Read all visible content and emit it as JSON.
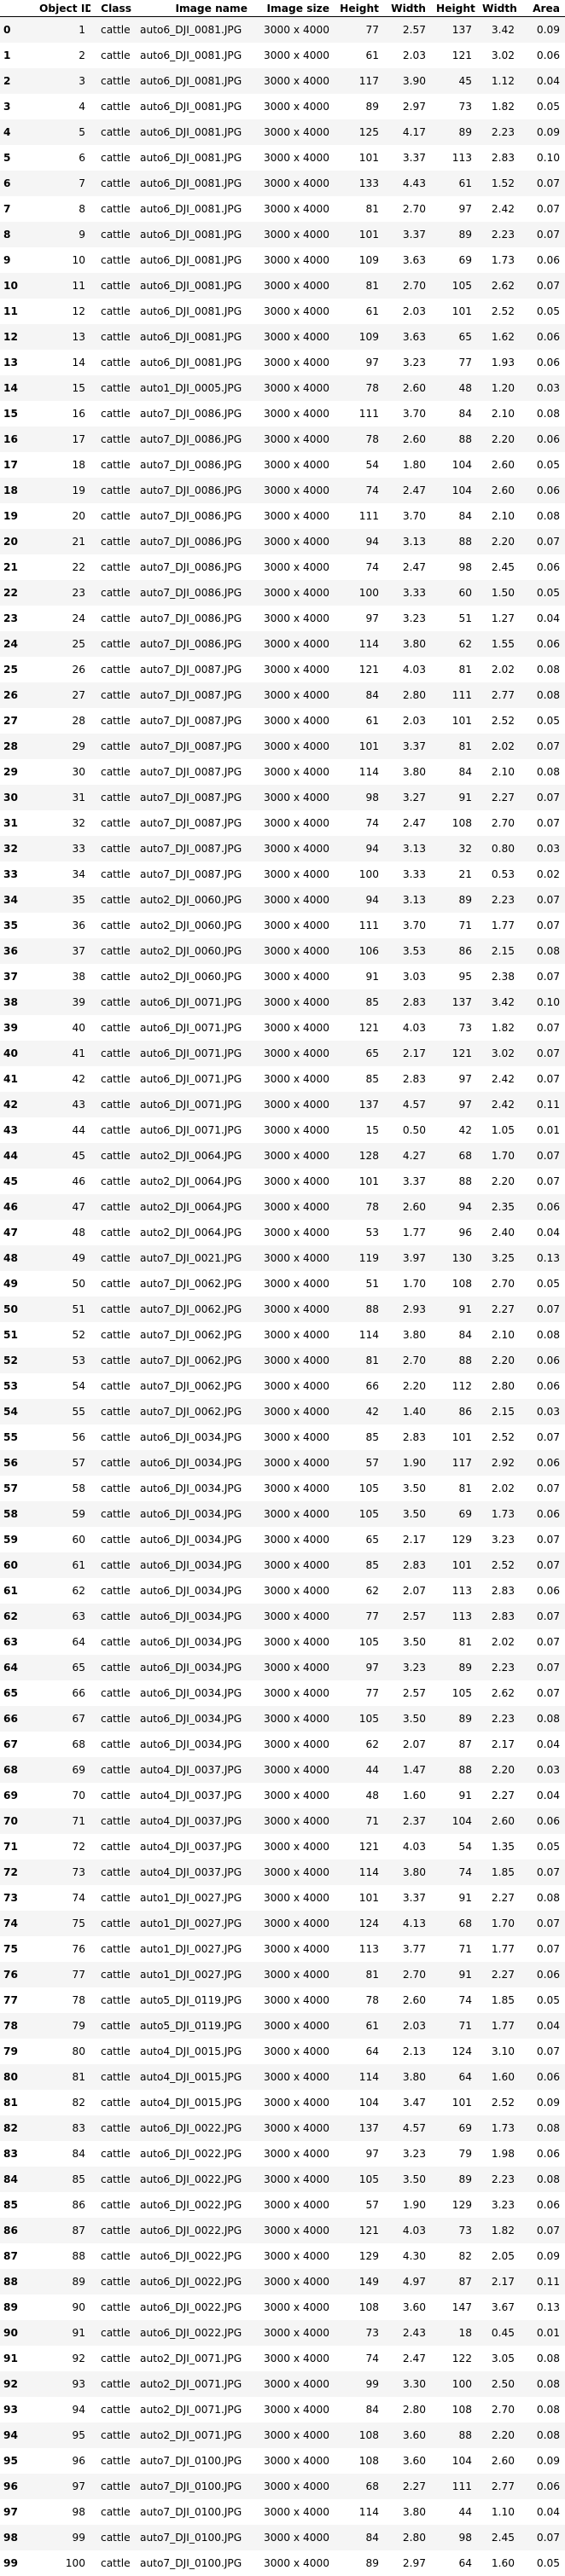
{
  "columns": [
    "",
    "Object ID",
    "Class",
    "Image name",
    "Image size",
    "Height",
    "Width",
    "Height",
    "Width",
    "Area"
  ],
  "rows": [
    [
      "0",
      "1",
      "cattle",
      "auto6_DJI_0081.JPG",
      "3000 x 4000",
      "77",
      "2.57",
      "137",
      "3.42",
      "0.09"
    ],
    [
      "1",
      "2",
      "cattle",
      "auto6_DJI_0081.JPG",
      "3000 x 4000",
      "61",
      "2.03",
      "121",
      "3.02",
      "0.06"
    ],
    [
      "2",
      "3",
      "cattle",
      "auto6_DJI_0081.JPG",
      "3000 x 4000",
      "117",
      "3.90",
      "45",
      "1.12",
      "0.04"
    ],
    [
      "3",
      "4",
      "cattle",
      "auto6_DJI_0081.JPG",
      "3000 x 4000",
      "89",
      "2.97",
      "73",
      "1.82",
      "0.05"
    ],
    [
      "4",
      "5",
      "cattle",
      "auto6_DJI_0081.JPG",
      "3000 x 4000",
      "125",
      "4.17",
      "89",
      "2.23",
      "0.09"
    ],
    [
      "5",
      "6",
      "cattle",
      "auto6_DJI_0081.JPG",
      "3000 x 4000",
      "101",
      "3.37",
      "113",
      "2.83",
      "0.10"
    ],
    [
      "6",
      "7",
      "cattle",
      "auto6_DJI_0081.JPG",
      "3000 x 4000",
      "133",
      "4.43",
      "61",
      "1.52",
      "0.07"
    ],
    [
      "7",
      "8",
      "cattle",
      "auto6_DJI_0081.JPG",
      "3000 x 4000",
      "81",
      "2.70",
      "97",
      "2.42",
      "0.07"
    ],
    [
      "8",
      "9",
      "cattle",
      "auto6_DJI_0081.JPG",
      "3000 x 4000",
      "101",
      "3.37",
      "89",
      "2.23",
      "0.07"
    ],
    [
      "9",
      "10",
      "cattle",
      "auto6_DJI_0081.JPG",
      "3000 x 4000",
      "109",
      "3.63",
      "69",
      "1.73",
      "0.06"
    ],
    [
      "10",
      "11",
      "cattle",
      "auto6_DJI_0081.JPG",
      "3000 x 4000",
      "81",
      "2.70",
      "105",
      "2.62",
      "0.07"
    ],
    [
      "11",
      "12",
      "cattle",
      "auto6_DJI_0081.JPG",
      "3000 x 4000",
      "61",
      "2.03",
      "101",
      "2.52",
      "0.05"
    ],
    [
      "12",
      "13",
      "cattle",
      "auto6_DJI_0081.JPG",
      "3000 x 4000",
      "109",
      "3.63",
      "65",
      "1.62",
      "0.06"
    ],
    [
      "13",
      "14",
      "cattle",
      "auto6_DJI_0081.JPG",
      "3000 x 4000",
      "97",
      "3.23",
      "77",
      "1.93",
      "0.06"
    ],
    [
      "14",
      "15",
      "cattle",
      "auto1_DJI_0005.JPG",
      "3000 x 4000",
      "78",
      "2.60",
      "48",
      "1.20",
      "0.03"
    ],
    [
      "15",
      "16",
      "cattle",
      "auto7_DJI_0086.JPG",
      "3000 x 4000",
      "111",
      "3.70",
      "84",
      "2.10",
      "0.08"
    ],
    [
      "16",
      "17",
      "cattle",
      "auto7_DJI_0086.JPG",
      "3000 x 4000",
      "78",
      "2.60",
      "88",
      "2.20",
      "0.06"
    ],
    [
      "17",
      "18",
      "cattle",
      "auto7_DJI_0086.JPG",
      "3000 x 4000",
      "54",
      "1.80",
      "104",
      "2.60",
      "0.05"
    ],
    [
      "18",
      "19",
      "cattle",
      "auto7_DJI_0086.JPG",
      "3000 x 4000",
      "74",
      "2.47",
      "104",
      "2.60",
      "0.06"
    ],
    [
      "19",
      "20",
      "cattle",
      "auto7_DJI_0086.JPG",
      "3000 x 4000",
      "111",
      "3.70",
      "84",
      "2.10",
      "0.08"
    ],
    [
      "20",
      "21",
      "cattle",
      "auto7_DJI_0086.JPG",
      "3000 x 4000",
      "94",
      "3.13",
      "88",
      "2.20",
      "0.07"
    ],
    [
      "21",
      "22",
      "cattle",
      "auto7_DJI_0086.JPG",
      "3000 x 4000",
      "74",
      "2.47",
      "98",
      "2.45",
      "0.06"
    ],
    [
      "22",
      "23",
      "cattle",
      "auto7_DJI_0086.JPG",
      "3000 x 4000",
      "100",
      "3.33",
      "60",
      "1.50",
      "0.05"
    ],
    [
      "23",
      "24",
      "cattle",
      "auto7_DJI_0086.JPG",
      "3000 x 4000",
      "97",
      "3.23",
      "51",
      "1.27",
      "0.04"
    ],
    [
      "24",
      "25",
      "cattle",
      "auto7_DJI_0086.JPG",
      "3000 x 4000",
      "114",
      "3.80",
      "62",
      "1.55",
      "0.06"
    ],
    [
      "25",
      "26",
      "cattle",
      "auto7_DJI_0087.JPG",
      "3000 x 4000",
      "121",
      "4.03",
      "81",
      "2.02",
      "0.08"
    ],
    [
      "26",
      "27",
      "cattle",
      "auto7_DJI_0087.JPG",
      "3000 x 4000",
      "84",
      "2.80",
      "111",
      "2.77",
      "0.08"
    ],
    [
      "27",
      "28",
      "cattle",
      "auto7_DJI_0087.JPG",
      "3000 x 4000",
      "61",
      "2.03",
      "101",
      "2.52",
      "0.05"
    ],
    [
      "28",
      "29",
      "cattle",
      "auto7_DJI_0087.JPG",
      "3000 x 4000",
      "101",
      "3.37",
      "81",
      "2.02",
      "0.07"
    ],
    [
      "29",
      "30",
      "cattle",
      "auto7_DJI_0087.JPG",
      "3000 x 4000",
      "114",
      "3.80",
      "84",
      "2.10",
      "0.08"
    ],
    [
      "30",
      "31",
      "cattle",
      "auto7_DJI_0087.JPG",
      "3000 x 4000",
      "98",
      "3.27",
      "91",
      "2.27",
      "0.07"
    ],
    [
      "31",
      "32",
      "cattle",
      "auto7_DJI_0087.JPG",
      "3000 x 4000",
      "74",
      "2.47",
      "108",
      "2.70",
      "0.07"
    ],
    [
      "32",
      "33",
      "cattle",
      "auto7_DJI_0087.JPG",
      "3000 x 4000",
      "94",
      "3.13",
      "32",
      "0.80",
      "0.03"
    ],
    [
      "33",
      "34",
      "cattle",
      "auto7_DJI_0087.JPG",
      "3000 x 4000",
      "100",
      "3.33",
      "21",
      "0.53",
      "0.02"
    ],
    [
      "34",
      "35",
      "cattle",
      "auto2_DJI_0060.JPG",
      "3000 x 4000",
      "94",
      "3.13",
      "89",
      "2.23",
      "0.07"
    ],
    [
      "35",
      "36",
      "cattle",
      "auto2_DJI_0060.JPG",
      "3000 x 4000",
      "111",
      "3.70",
      "71",
      "1.77",
      "0.07"
    ],
    [
      "36",
      "37",
      "cattle",
      "auto2_DJI_0060.JPG",
      "3000 x 4000",
      "106",
      "3.53",
      "86",
      "2.15",
      "0.08"
    ],
    [
      "37",
      "38",
      "cattle",
      "auto2_DJI_0060.JPG",
      "3000 x 4000",
      "91",
      "3.03",
      "95",
      "2.38",
      "0.07"
    ],
    [
      "38",
      "39",
      "cattle",
      "auto6_DJI_0071.JPG",
      "3000 x 4000",
      "85",
      "2.83",
      "137",
      "3.42",
      "0.10"
    ],
    [
      "39",
      "40",
      "cattle",
      "auto6_DJI_0071.JPG",
      "3000 x 4000",
      "121",
      "4.03",
      "73",
      "1.82",
      "0.07"
    ],
    [
      "40",
      "41",
      "cattle",
      "auto6_DJI_0071.JPG",
      "3000 x 4000",
      "65",
      "2.17",
      "121",
      "3.02",
      "0.07"
    ],
    [
      "41",
      "42",
      "cattle",
      "auto6_DJI_0071.JPG",
      "3000 x 4000",
      "85",
      "2.83",
      "97",
      "2.42",
      "0.07"
    ],
    [
      "42",
      "43",
      "cattle",
      "auto6_DJI_0071.JPG",
      "3000 x 4000",
      "137",
      "4.57",
      "97",
      "2.42",
      "0.11"
    ],
    [
      "43",
      "44",
      "cattle",
      "auto6_DJI_0071.JPG",
      "3000 x 4000",
      "15",
      "0.50",
      "42",
      "1.05",
      "0.01"
    ],
    [
      "44",
      "45",
      "cattle",
      "auto2_DJI_0064.JPG",
      "3000 x 4000",
      "128",
      "4.27",
      "68",
      "1.70",
      "0.07"
    ],
    [
      "45",
      "46",
      "cattle",
      "auto2_DJI_0064.JPG",
      "3000 x 4000",
      "101",
      "3.37",
      "88",
      "2.20",
      "0.07"
    ],
    [
      "46",
      "47",
      "cattle",
      "auto2_DJI_0064.JPG",
      "3000 x 4000",
      "78",
      "2.60",
      "94",
      "2.35",
      "0.06"
    ],
    [
      "47",
      "48",
      "cattle",
      "auto2_DJI_0064.JPG",
      "3000 x 4000",
      "53",
      "1.77",
      "96",
      "2.40",
      "0.04"
    ],
    [
      "48",
      "49",
      "cattle",
      "auto7_DJI_0021.JPG",
      "3000 x 4000",
      "119",
      "3.97",
      "130",
      "3.25",
      "0.13"
    ],
    [
      "49",
      "50",
      "cattle",
      "auto7_DJI_0062.JPG",
      "3000 x 4000",
      "51",
      "1.70",
      "108",
      "2.70",
      "0.05"
    ],
    [
      "50",
      "51",
      "cattle",
      "auto7_DJI_0062.JPG",
      "3000 x 4000",
      "88",
      "2.93",
      "91",
      "2.27",
      "0.07"
    ],
    [
      "51",
      "52",
      "cattle",
      "auto7_DJI_0062.JPG",
      "3000 x 4000",
      "114",
      "3.80",
      "84",
      "2.10",
      "0.08"
    ],
    [
      "52",
      "53",
      "cattle",
      "auto7_DJI_0062.JPG",
      "3000 x 4000",
      "81",
      "2.70",
      "88",
      "2.20",
      "0.06"
    ],
    [
      "53",
      "54",
      "cattle",
      "auto7_DJI_0062.JPG",
      "3000 x 4000",
      "66",
      "2.20",
      "112",
      "2.80",
      "0.06"
    ],
    [
      "54",
      "55",
      "cattle",
      "auto7_DJI_0062.JPG",
      "3000 x 4000",
      "42",
      "1.40",
      "86",
      "2.15",
      "0.03"
    ],
    [
      "55",
      "56",
      "cattle",
      "auto6_DJI_0034.JPG",
      "3000 x 4000",
      "85",
      "2.83",
      "101",
      "2.52",
      "0.07"
    ],
    [
      "56",
      "57",
      "cattle",
      "auto6_DJI_0034.JPG",
      "3000 x 4000",
      "57",
      "1.90",
      "117",
      "2.92",
      "0.06"
    ],
    [
      "57",
      "58",
      "cattle",
      "auto6_DJI_0034.JPG",
      "3000 x 4000",
      "105",
      "3.50",
      "81",
      "2.02",
      "0.07"
    ],
    [
      "58",
      "59",
      "cattle",
      "auto6_DJI_0034.JPG",
      "3000 x 4000",
      "105",
      "3.50",
      "69",
      "1.73",
      "0.06"
    ],
    [
      "59",
      "60",
      "cattle",
      "auto6_DJI_0034.JPG",
      "3000 x 4000",
      "65",
      "2.17",
      "129",
      "3.23",
      "0.07"
    ],
    [
      "60",
      "61",
      "cattle",
      "auto6_DJI_0034.JPG",
      "3000 x 4000",
      "85",
      "2.83",
      "101",
      "2.52",
      "0.07"
    ],
    [
      "61",
      "62",
      "cattle",
      "auto6_DJI_0034.JPG",
      "3000 x 4000",
      "62",
      "2.07",
      "113",
      "2.83",
      "0.06"
    ],
    [
      "62",
      "63",
      "cattle",
      "auto6_DJI_0034.JPG",
      "3000 x 4000",
      "77",
      "2.57",
      "113",
      "2.83",
      "0.07"
    ],
    [
      "63",
      "64",
      "cattle",
      "auto6_DJI_0034.JPG",
      "3000 x 4000",
      "105",
      "3.50",
      "81",
      "2.02",
      "0.07"
    ],
    [
      "64",
      "65",
      "cattle",
      "auto6_DJI_0034.JPG",
      "3000 x 4000",
      "97",
      "3.23",
      "89",
      "2.23",
      "0.07"
    ],
    [
      "65",
      "66",
      "cattle",
      "auto6_DJI_0034.JPG",
      "3000 x 4000",
      "77",
      "2.57",
      "105",
      "2.62",
      "0.07"
    ],
    [
      "66",
      "67",
      "cattle",
      "auto6_DJI_0034.JPG",
      "3000 x 4000",
      "105",
      "3.50",
      "89",
      "2.23",
      "0.08"
    ],
    [
      "67",
      "68",
      "cattle",
      "auto6_DJI_0034.JPG",
      "3000 x 4000",
      "62",
      "2.07",
      "87",
      "2.17",
      "0.04"
    ],
    [
      "68",
      "69",
      "cattle",
      "auto4_DJI_0037.JPG",
      "3000 x 4000",
      "44",
      "1.47",
      "88",
      "2.20",
      "0.03"
    ],
    [
      "69",
      "70",
      "cattle",
      "auto4_DJI_0037.JPG",
      "3000 x 4000",
      "48",
      "1.60",
      "91",
      "2.27",
      "0.04"
    ],
    [
      "70",
      "71",
      "cattle",
      "auto4_DJI_0037.JPG",
      "3000 x 4000",
      "71",
      "2.37",
      "104",
      "2.60",
      "0.06"
    ],
    [
      "71",
      "72",
      "cattle",
      "auto4_DJI_0037.JPG",
      "3000 x 4000",
      "121",
      "4.03",
      "54",
      "1.35",
      "0.05"
    ],
    [
      "72",
      "73",
      "cattle",
      "auto4_DJI_0037.JPG",
      "3000 x 4000",
      "114",
      "3.80",
      "74",
      "1.85",
      "0.07"
    ],
    [
      "73",
      "74",
      "cattle",
      "auto1_DJI_0027.JPG",
      "3000 x 4000",
      "101",
      "3.37",
      "91",
      "2.27",
      "0.08"
    ],
    [
      "74",
      "75",
      "cattle",
      "auto1_DJI_0027.JPG",
      "3000 x 4000",
      "124",
      "4.13",
      "68",
      "1.70",
      "0.07"
    ],
    [
      "75",
      "76",
      "cattle",
      "auto1_DJI_0027.JPG",
      "3000 x 4000",
      "113",
      "3.77",
      "71",
      "1.77",
      "0.07"
    ],
    [
      "76",
      "77",
      "cattle",
      "auto1_DJI_0027.JPG",
      "3000 x 4000",
      "81",
      "2.70",
      "91",
      "2.27",
      "0.06"
    ],
    [
      "77",
      "78",
      "cattle",
      "auto5_DJI_0119.JPG",
      "3000 x 4000",
      "78",
      "2.60",
      "74",
      "1.85",
      "0.05"
    ],
    [
      "78",
      "79",
      "cattle",
      "auto5_DJI_0119.JPG",
      "3000 x 4000",
      "61",
      "2.03",
      "71",
      "1.77",
      "0.04"
    ],
    [
      "79",
      "80",
      "cattle",
      "auto4_DJI_0015.JPG",
      "3000 x 4000",
      "64",
      "2.13",
      "124",
      "3.10",
      "0.07"
    ],
    [
      "80",
      "81",
      "cattle",
      "auto4_DJI_0015.JPG",
      "3000 x 4000",
      "114",
      "3.80",
      "64",
      "1.60",
      "0.06"
    ],
    [
      "81",
      "82",
      "cattle",
      "auto4_DJI_0015.JPG",
      "3000 x 4000",
      "104",
      "3.47",
      "101",
      "2.52",
      "0.09"
    ],
    [
      "82",
      "83",
      "cattle",
      "auto6_DJI_0022.JPG",
      "3000 x 4000",
      "137",
      "4.57",
      "69",
      "1.73",
      "0.08"
    ],
    [
      "83",
      "84",
      "cattle",
      "auto6_DJI_0022.JPG",
      "3000 x 4000",
      "97",
      "3.23",
      "79",
      "1.98",
      "0.06"
    ],
    [
      "84",
      "85",
      "cattle",
      "auto6_DJI_0022.JPG",
      "3000 x 4000",
      "105",
      "3.50",
      "89",
      "2.23",
      "0.08"
    ],
    [
      "85",
      "86",
      "cattle",
      "auto6_DJI_0022.JPG",
      "3000 x 4000",
      "57",
      "1.90",
      "129",
      "3.23",
      "0.06"
    ],
    [
      "86",
      "87",
      "cattle",
      "auto6_DJI_0022.JPG",
      "3000 x 4000",
      "121",
      "4.03",
      "73",
      "1.82",
      "0.07"
    ],
    [
      "87",
      "88",
      "cattle",
      "auto6_DJI_0022.JPG",
      "3000 x 4000",
      "129",
      "4.30",
      "82",
      "2.05",
      "0.09"
    ],
    [
      "88",
      "89",
      "cattle",
      "auto6_DJI_0022.JPG",
      "3000 x 4000",
      "149",
      "4.97",
      "87",
      "2.17",
      "0.11"
    ],
    [
      "89",
      "90",
      "cattle",
      "auto6_DJI_0022.JPG",
      "3000 x 4000",
      "108",
      "3.60",
      "147",
      "3.67",
      "0.13"
    ],
    [
      "90",
      "91",
      "cattle",
      "auto6_DJI_0022.JPG",
      "3000 x 4000",
      "73",
      "2.43",
      "18",
      "0.45",
      "0.01"
    ],
    [
      "91",
      "92",
      "cattle",
      "auto2_DJI_0071.JPG",
      "3000 x 4000",
      "74",
      "2.47",
      "122",
      "3.05",
      "0.08"
    ],
    [
      "92",
      "93",
      "cattle",
      "auto2_DJI_0071.JPG",
      "3000 x 4000",
      "99",
      "3.30",
      "100",
      "2.50",
      "0.08"
    ],
    [
      "93",
      "94",
      "cattle",
      "auto2_DJI_0071.JPG",
      "3000 x 4000",
      "84",
      "2.80",
      "108",
      "2.70",
      "0.08"
    ],
    [
      "94",
      "95",
      "cattle",
      "auto2_DJI_0071.JPG",
      "3000 x 4000",
      "108",
      "3.60",
      "88",
      "2.20",
      "0.08"
    ],
    [
      "95",
      "96",
      "cattle",
      "auto7_DJI_0100.JPG",
      "3000 x 4000",
      "108",
      "3.60",
      "104",
      "2.60",
      "0.09"
    ],
    [
      "96",
      "97",
      "cattle",
      "auto7_DJI_0100.JPG",
      "3000 x 4000",
      "68",
      "2.27",
      "111",
      "2.77",
      "0.06"
    ],
    [
      "97",
      "98",
      "cattle",
      "auto7_DJI_0100.JPG",
      "3000 x 4000",
      "114",
      "3.80",
      "44",
      "1.10",
      "0.04"
    ],
    [
      "98",
      "99",
      "cattle",
      "auto7_DJI_0100.JPG",
      "3000 x 4000",
      "84",
      "2.80",
      "98",
      "2.45",
      "0.07"
    ],
    [
      "99",
      "100",
      "cattle",
      "auto7_DJI_0100.JPG",
      "3000 x 4000",
      "89",
      "2.97",
      "64",
      "1.60",
      "0.05"
    ]
  ]
}
